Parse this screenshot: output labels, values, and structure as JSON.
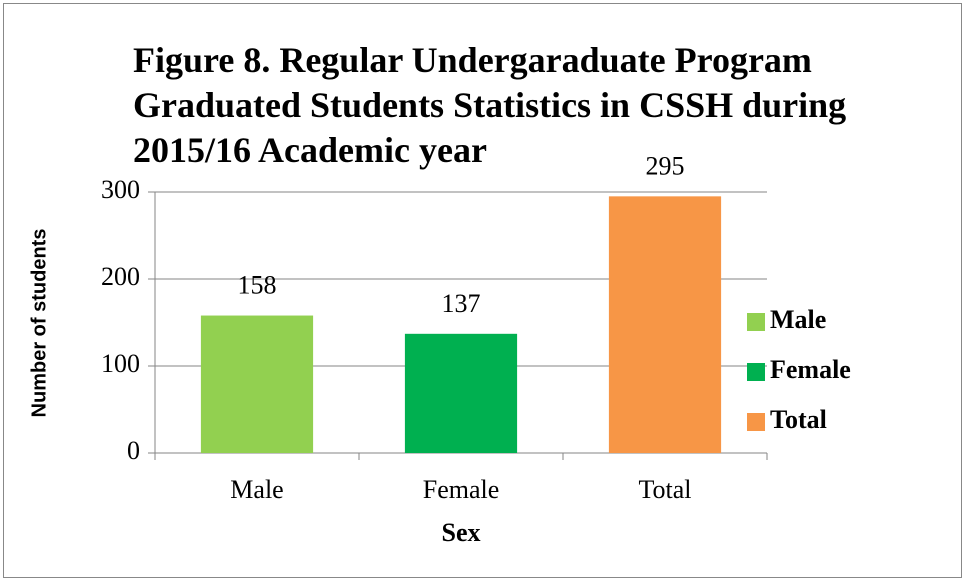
{
  "chart_data": {
    "type": "bar",
    "title": "Figure 8. Regular Undergaraduate Program Graduated Students Statistics in CSSH during 2015/16 Academic year",
    "x_label": "Sex",
    "y_label": "Number of students",
    "categories": [
      "Male",
      "Female",
      "Total"
    ],
    "values": [
      158,
      137,
      295
    ],
    "colors": [
      "#92d050",
      "#00b050",
      "#f79646"
    ],
    "ylim": [
      0,
      300
    ],
    "yticks": [
      0,
      100,
      200,
      300
    ],
    "grid": true,
    "legend": "right"
  }
}
